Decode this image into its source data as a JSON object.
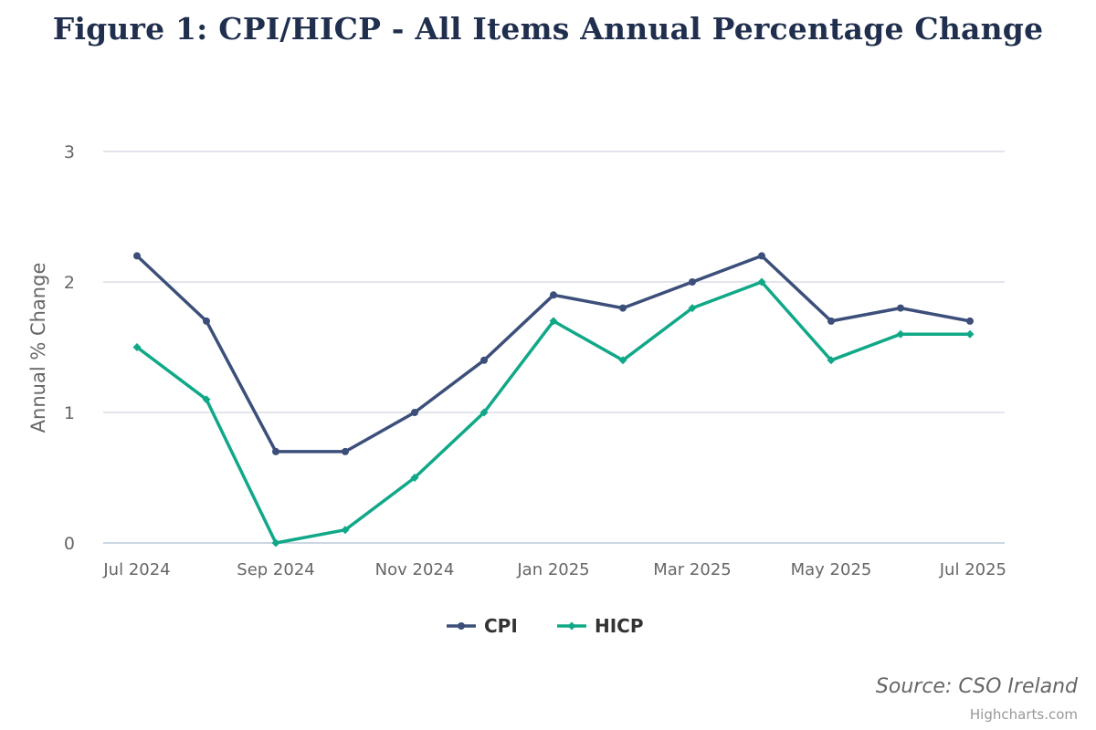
{
  "chart_data": {
    "type": "line",
    "title": "Figure 1: CPI/HICP - All Items Annual Percentage Change",
    "xlabel": "",
    "ylabel": "Annual % Change",
    "ylim": [
      0,
      3
    ],
    "y_ticks": [
      "0",
      "1",
      "2",
      "3"
    ],
    "x_tick_labels": [
      "Jul 2024",
      "Sep 2024",
      "Nov 2024",
      "Jan 2025",
      "Mar 2025",
      "May 2025",
      "Jul 2025"
    ],
    "categories": [
      "Jul 2024",
      "Aug 2024",
      "Sep 2024",
      "Oct 2024",
      "Nov 2024",
      "Dec 2024",
      "Jan 2025",
      "Feb 2025",
      "Mar 2025",
      "Apr 2025",
      "May 2025",
      "Jun 2025",
      "Jul 2025"
    ],
    "grid": true,
    "legend_position": "bottom-center",
    "series": [
      {
        "name": "CPI",
        "color": "#3c4f7a",
        "marker": "circle",
        "values": [
          2.2,
          1.7,
          0.7,
          0.7,
          1.0,
          1.4,
          1.9,
          1.8,
          2.0,
          2.2,
          1.7,
          1.8,
          1.7
        ]
      },
      {
        "name": "HICP",
        "color": "#10a888",
        "marker": "diamond",
        "values": [
          1.5,
          1.1,
          0.0,
          0.1,
          0.5,
          1.0,
          1.7,
          1.4,
          1.8,
          2.0,
          1.4,
          1.6,
          1.6
        ]
      }
    ],
    "source": "Source: CSO Ireland",
    "credits": "Highcharts.com"
  }
}
